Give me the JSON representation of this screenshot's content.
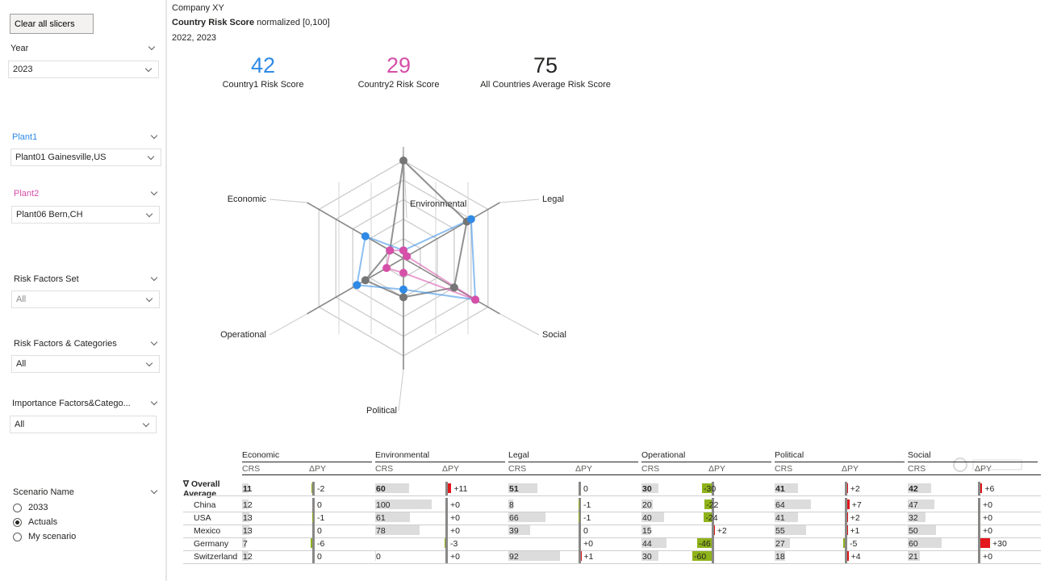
{
  "slicers": {
    "clear_all_label": "Clear all slicers",
    "year": {
      "label": "Year",
      "value": "2023"
    },
    "plant1": {
      "label": "Plant1",
      "value": "Plant01 Gainesville,US",
      "color": "#2f8ae5"
    },
    "plant2": {
      "label": "Plant2",
      "value": "Plant06 Bern,CH",
      "color": "#d64fa8"
    },
    "risk_factors_set": {
      "label": "Risk Factors Set",
      "value": "All"
    },
    "risk_factors_categories": {
      "label": "Risk Factors & Categories",
      "value": "All"
    },
    "importance_factors": {
      "label": "Importance Factors&Catego...",
      "value": "All"
    },
    "scenario": {
      "label": "Scenario Name",
      "options": [
        "2033",
        "Actuals",
        "My scenario"
      ],
      "selected": "Actuals"
    }
  },
  "report": {
    "company": "Company XY",
    "title_bold": "Country Risk Score",
    "title_rest": " normalized [0,100]",
    "years": "2022, 2023"
  },
  "kpis": [
    {
      "value": "42",
      "label": "Country1 Risk Score",
      "color": "#2f8ae5"
    },
    {
      "value": "29",
      "label": "Country2 Risk Score",
      "color": "#d64fa8"
    },
    {
      "value": "75",
      "label": "All Countries Average Risk Score",
      "color": "#252423"
    }
  ],
  "chart_data": {
    "type": "radar",
    "axes": [
      "Environmental",
      "Legal",
      "Social",
      "Political",
      "Operational",
      "Economic"
    ],
    "max": 100,
    "levels": 5,
    "series": [
      {
        "name": "Country1 Risk Score",
        "color": "#2f8ae5",
        "values": [
          8,
          80,
          85,
          32,
          55,
          45
        ]
      },
      {
        "name": "Country2 Risk Score",
        "color": "#d64fa8",
        "values": [
          8,
          4,
          85,
          15,
          20,
          16
        ]
      },
      {
        "name": "All Countries Average Risk Score",
        "color": "#757575",
        "values": [
          100,
          75,
          60,
          40,
          45,
          16
        ]
      }
    ]
  },
  "table": {
    "groups": [
      "Economic",
      "Environmental",
      "Legal",
      "Operational",
      "Political",
      "Social"
    ],
    "subheaders": [
      "CRS",
      "ΔPY"
    ],
    "expand_icon": "∇",
    "total_label_1": "Overall",
    "total_label_2": "Average",
    "rows": [
      {
        "name": "",
        "total": true,
        "crs": [
          "11",
          "60",
          "51",
          "30",
          "41",
          "42"
        ],
        "dpy": [
          "-2",
          "+11",
          "0",
          "-30",
          "+2",
          "+6"
        ]
      },
      {
        "name": "China",
        "crs": [
          "12",
          "100",
          "8",
          "20",
          "64",
          "47"
        ],
        "dpy": [
          "0",
          "+0",
          "-1",
          "-22",
          "+7",
          "+0"
        ]
      },
      {
        "name": "USA",
        "crs": [
          "13",
          "61",
          "66",
          "40",
          "41",
          "32"
        ],
        "dpy": [
          "-1",
          "+0",
          "-1",
          "-24",
          "+2",
          "+0"
        ]
      },
      {
        "name": "Mexico",
        "crs": [
          "13",
          "78",
          "39",
          "15",
          "55",
          "50"
        ],
        "dpy": [
          "0",
          "+0",
          "0",
          "+2",
          "+1",
          "+0"
        ]
      },
      {
        "name": "Germany",
        "crs": [
          "7",
          "",
          "",
          "44",
          "27",
          "60"
        ],
        "dpy": [
          "-6",
          "-3",
          "+0",
          "-46",
          "-5",
          "+30"
        ]
      },
      {
        "name": "Switzerland",
        "crs": [
          "12",
          "0",
          "92",
          "30",
          "18",
          "21"
        ],
        "dpy": [
          "0",
          "+0",
          "+1",
          "-60",
          "+4",
          "+0"
        ]
      }
    ]
  }
}
